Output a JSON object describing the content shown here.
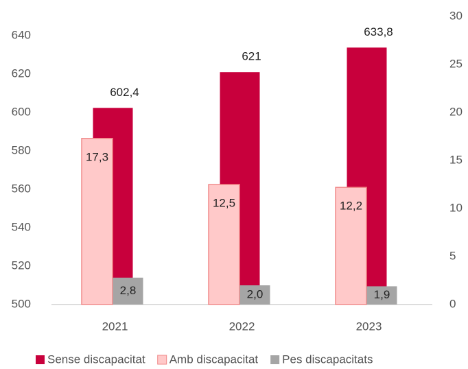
{
  "chart_data": {
    "type": "bar",
    "categories": [
      "2021",
      "2022",
      "2023"
    ],
    "series": [
      {
        "name": "Sense discapacitat",
        "color": "#c8003c",
        "values": [
          602.4,
          621,
          633.8
        ],
        "value_labels": [
          "602,4",
          "621",
          "633,8"
        ]
      },
      {
        "name": "Amb discapacitat",
        "color": "#ffc9c9",
        "axis": "y2",
        "values": [
          17.3,
          12.5,
          12.2
        ],
        "value_labels": [
          "17,3",
          "12,5",
          "12,2"
        ]
      },
      {
        "name": "Pes discapacitats",
        "color": "#a5a5a5",
        "axis": "y2",
        "values": [
          2.8,
          2.0,
          1.9
        ],
        "value_labels": [
          "2,8",
          "2,0",
          "1,9"
        ]
      }
    ],
    "ylim": [
      500,
      650
    ],
    "yticks": [
      500,
      520,
      540,
      560,
      580,
      600,
      620,
      640
    ],
    "y2lim": [
      0,
      30
    ],
    "y2ticks": [
      0,
      5,
      10,
      15,
      20,
      25,
      30
    ],
    "grid": false,
    "legend": "bottom"
  }
}
